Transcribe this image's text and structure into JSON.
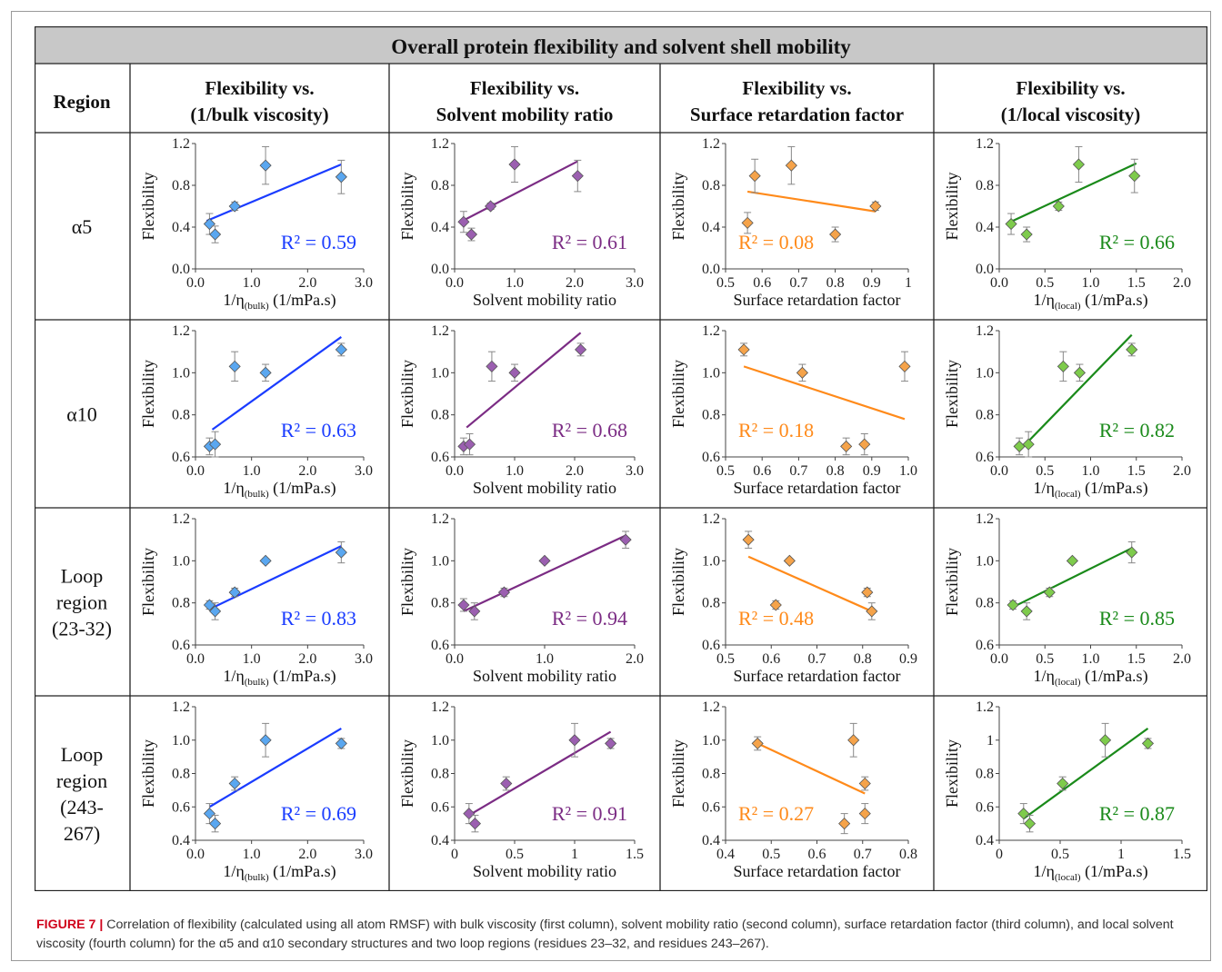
{
  "table": {
    "title": "Overall protein flexibility and solvent shell mobility",
    "region_header": "Region",
    "columns": [
      [
        "Flexibility vs.",
        "(1/bulk viscosity)"
      ],
      [
        "Flexibility vs.",
        "Solvent mobility ratio"
      ],
      [
        "Flexibility vs.",
        "Surface retardation factor"
      ],
      [
        "Flexibility vs.",
        "(1/local viscosity)"
      ]
    ],
    "rows": [
      [
        "α5"
      ],
      [
        "α10"
      ],
      [
        "Loop",
        "region",
        "(23-32)"
      ],
      [
        "Loop",
        "region",
        "(243-",
        "267)"
      ]
    ]
  },
  "caption": {
    "label": "FIGURE 7 |",
    "text": " Correlation of flexibility (calculated using all atom RMSF) with bulk viscosity (first column), solvent mobility ratio (second column), surface retardation factor (third column), and local solvent viscosity (fourth column) for the α5 and α10 secondary structures and two loop regions (residues 23–32, and residues 243–267)."
  },
  "chart_data": [
    {
      "type": "scatter",
      "row": 0,
      "col": 0,
      "color": "#1a3cff",
      "marker_fill": "#5aa7f0",
      "ylabel": "Flexibility",
      "xlabel": {
        "pre": "1/η",
        "sub": "(bulk)",
        "post": " (1/mPa.s)"
      },
      "xlim": [
        0,
        3
      ],
      "ylim": [
        0,
        1.2
      ],
      "xticks": [
        "0.0",
        "1.0",
        "2.0",
        "3.0"
      ],
      "xtick_vals": [
        0,
        1,
        2,
        3
      ],
      "yticks": [
        "0.0",
        "0.4",
        "0.8",
        "1.2"
      ],
      "ytick_vals": [
        0,
        0.4,
        0.8,
        1.2
      ],
      "r2": "R² = 0.59",
      "x": [
        0.25,
        0.35,
        0.7,
        1.25,
        2.6
      ],
      "y": [
        0.43,
        0.33,
        0.6,
        0.99,
        0.88
      ],
      "err": [
        0.1,
        0.08,
        0.04,
        0.18,
        0.16
      ],
      "fit": [
        [
          0.2,
          0.46
        ],
        [
          2.6,
          1.0
        ]
      ]
    },
    {
      "type": "scatter",
      "row": 0,
      "col": 1,
      "color": "#7b2c84",
      "marker_fill": "#9b5fb0",
      "ylabel": "Flexibility",
      "xlabel": {
        "pre": "Solvent mobility ratio"
      },
      "xlim": [
        0,
        3
      ],
      "ylim": [
        0,
        1.2
      ],
      "xticks": [
        "0.0",
        "1.0",
        "2.0",
        "3.0"
      ],
      "xtick_vals": [
        0,
        1,
        2,
        3
      ],
      "yticks": [
        "0.0",
        "0.4",
        "0.8",
        "1.2"
      ],
      "ytick_vals": [
        0,
        0.4,
        0.8,
        1.2
      ],
      "r2": "R² = 0.61",
      "x": [
        0.15,
        0.28,
        0.6,
        1.0,
        2.05
      ],
      "y": [
        0.45,
        0.33,
        0.6,
        1.0,
        0.89
      ],
      "err": [
        0.1,
        0.06,
        0.03,
        0.17,
        0.15
      ],
      "fit": [
        [
          0.1,
          0.45
        ],
        [
          2.05,
          1.03
        ]
      ]
    },
    {
      "type": "scatter",
      "row": 0,
      "col": 2,
      "color": "#ff8a1a",
      "marker_fill": "#f5a34a",
      "ylabel": "Flexibility",
      "xlabel": {
        "pre": "Surface retardation factor"
      },
      "xlim": [
        0.5,
        1.0
      ],
      "ylim": [
        0,
        1.2
      ],
      "xticks": [
        "0.5",
        "0.6",
        "0.7",
        "0.8",
        "0.9",
        "1"
      ],
      "xtick_vals": [
        0.5,
        0.6,
        0.7,
        0.8,
        0.9,
        1.0
      ],
      "yticks": [
        "0.0",
        "0.4",
        "0.8",
        "1.2"
      ],
      "ytick_vals": [
        0,
        0.4,
        0.8,
        1.2
      ],
      "r2": "R² = 0.08",
      "x": [
        0.56,
        0.58,
        0.68,
        0.8,
        0.91
      ],
      "y": [
        0.44,
        0.89,
        0.99,
        0.33,
        0.6
      ],
      "err": [
        0.1,
        0.16,
        0.18,
        0.07,
        0.04
      ],
      "fit": [
        [
          0.56,
          0.74
        ],
        [
          0.91,
          0.55
        ]
      ]
    },
    {
      "type": "scatter",
      "row": 0,
      "col": 3,
      "color": "#1a8a1a",
      "marker_fill": "#7ecb4c",
      "ylabel": "Flexibility",
      "xlabel": {
        "pre": "1/η",
        "sub": "(local)",
        "post": " (1/mPa.s)"
      },
      "xlim": [
        0,
        2
      ],
      "ylim": [
        0,
        1.2
      ],
      "xticks": [
        "0.0",
        "0.5",
        "1.0",
        "1.5",
        "2.0"
      ],
      "xtick_vals": [
        0,
        0.5,
        1,
        1.5,
        2
      ],
      "yticks": [
        "0.0",
        "0.4",
        "0.8",
        "1.2"
      ],
      "ytick_vals": [
        0,
        0.4,
        0.8,
        1.2
      ],
      "r2": "R² = 0.66",
      "x": [
        0.13,
        0.3,
        0.65,
        0.87,
        1.48
      ],
      "y": [
        0.43,
        0.33,
        0.6,
        1.0,
        0.89
      ],
      "err": [
        0.1,
        0.07,
        0.04,
        0.17,
        0.16
      ],
      "fit": [
        [
          0.1,
          0.44
        ],
        [
          1.5,
          1.01
        ]
      ]
    },
    {
      "type": "scatter",
      "row": 1,
      "col": 0,
      "color": "#1a3cff",
      "marker_fill": "#5aa7f0",
      "ylabel": "Flexibility",
      "xlabel": {
        "pre": "1/η",
        "sub": "(bulk)",
        "post": " (1/mPa.s)"
      },
      "xlim": [
        0,
        3
      ],
      "ylim": [
        0.6,
        1.2
      ],
      "xticks": [
        "0.0",
        "1.0",
        "2.0",
        "3.0"
      ],
      "xtick_vals": [
        0,
        1,
        2,
        3
      ],
      "yticks": [
        "0.6",
        "0.8",
        "1.0",
        "1.2"
      ],
      "ytick_vals": [
        0.6,
        0.8,
        1.0,
        1.2
      ],
      "r2": "R² = 0.63",
      "x": [
        0.25,
        0.35,
        0.7,
        1.25,
        2.6
      ],
      "y": [
        0.65,
        0.66,
        1.03,
        1.0,
        1.11
      ],
      "err": [
        0.04,
        0.06,
        0.07,
        0.04,
        0.03
      ],
      "fit": [
        [
          0.3,
          0.73
        ],
        [
          2.6,
          1.17
        ]
      ]
    },
    {
      "type": "scatter",
      "row": 1,
      "col": 1,
      "color": "#7b2c84",
      "marker_fill": "#9b5fb0",
      "ylabel": "Flexibility",
      "xlabel": {
        "pre": "Solvent mobility ratio"
      },
      "xlim": [
        0,
        3
      ],
      "ylim": [
        0.6,
        1.2
      ],
      "xticks": [
        "0.0",
        "1.0",
        "2.0",
        "3.0"
      ],
      "xtick_vals": [
        0,
        1,
        2,
        3
      ],
      "yticks": [
        "0.6",
        "0.8",
        "1.0",
        "1.2"
      ],
      "ytick_vals": [
        0.6,
        0.8,
        1.0,
        1.2
      ],
      "r2": "R² = 0.68",
      "x": [
        0.15,
        0.25,
        0.62,
        1.0,
        2.1
      ],
      "y": [
        0.65,
        0.66,
        1.03,
        1.0,
        1.11
      ],
      "err": [
        0.04,
        0.05,
        0.07,
        0.04,
        0.03
      ],
      "fit": [
        [
          0.2,
          0.74
        ],
        [
          2.1,
          1.19
        ]
      ]
    },
    {
      "type": "scatter",
      "row": 1,
      "col": 2,
      "color": "#ff8a1a",
      "marker_fill": "#f5a34a",
      "ylabel": "Flexibility",
      "xlabel": {
        "pre": "Surface retardation factor"
      },
      "xlim": [
        0.5,
        1.0
      ],
      "ylim": [
        0.6,
        1.2
      ],
      "xticks": [
        "0.5",
        "0.6",
        "0.7",
        "0.8",
        "0.9",
        "1.0"
      ],
      "xtick_vals": [
        0.5,
        0.6,
        0.7,
        0.8,
        0.9,
        1.0
      ],
      "yticks": [
        "0.6",
        "0.8",
        "1.0",
        "1.2"
      ],
      "ytick_vals": [
        0.6,
        0.8,
        1.0,
        1.2
      ],
      "r2": "R² = 0.18",
      "x": [
        0.55,
        0.71,
        0.83,
        0.88,
        0.99
      ],
      "y": [
        1.11,
        1.0,
        0.65,
        0.66,
        1.03
      ],
      "err": [
        0.03,
        0.04,
        0.04,
        0.05,
        0.07
      ],
      "fit": [
        [
          0.55,
          1.03
        ],
        [
          0.99,
          0.78
        ]
      ]
    },
    {
      "type": "scatter",
      "row": 1,
      "col": 3,
      "color": "#1a8a1a",
      "marker_fill": "#7ecb4c",
      "ylabel": "Flexibility",
      "xlabel": {
        "pre": "1/η",
        "sub": "(local)",
        "post": " (1/mPa.s)"
      },
      "xlim": [
        0,
        2
      ],
      "ylim": [
        0.6,
        1.2
      ],
      "xticks": [
        "0.0",
        "0.5",
        "1.0",
        "1.5",
        "2.0"
      ],
      "xtick_vals": [
        0,
        0.5,
        1,
        1.5,
        2
      ],
      "yticks": [
        "0.6",
        "0.8",
        "1.0",
        "1.2"
      ],
      "ytick_vals": [
        0.6,
        0.8,
        1.0,
        1.2
      ],
      "r2": "R² = 0.82",
      "x": [
        0.22,
        0.32,
        0.7,
        0.88,
        1.45
      ],
      "y": [
        0.65,
        0.66,
        1.03,
        1.0,
        1.11
      ],
      "err": [
        0.04,
        0.06,
        0.07,
        0.04,
        0.03
      ],
      "fit": [
        [
          0.22,
          0.63
        ],
        [
          1.45,
          1.18
        ]
      ]
    },
    {
      "type": "scatter",
      "row": 2,
      "col": 0,
      "color": "#1a3cff",
      "marker_fill": "#5aa7f0",
      "ylabel": "Flexibility",
      "xlabel": {
        "pre": "1/η",
        "sub": "(bulk)",
        "post": " (1/mPa.s)"
      },
      "xlim": [
        0,
        3
      ],
      "ylim": [
        0.6,
        1.2
      ],
      "xticks": [
        "0.0",
        "1.0",
        "2.0",
        "3.0"
      ],
      "xtick_vals": [
        0,
        1,
        2,
        3
      ],
      "yticks": [
        "0.6",
        "0.8",
        "1.0",
        "1.2"
      ],
      "ytick_vals": [
        0.6,
        0.8,
        1.0,
        1.2
      ],
      "r2": "R² = 0.83",
      "x": [
        0.25,
        0.35,
        0.7,
        1.25,
        2.6
      ],
      "y": [
        0.79,
        0.76,
        0.85,
        1.0,
        1.04
      ],
      "err": [
        0.02,
        0.04,
        0.02,
        0.01,
        0.05
      ],
      "fit": [
        [
          0.25,
          0.77
        ],
        [
          2.6,
          1.07
        ]
      ]
    },
    {
      "type": "scatter",
      "row": 2,
      "col": 1,
      "color": "#7b2c84",
      "marker_fill": "#9b5fb0",
      "ylabel": "Flexibility",
      "xlabel": {
        "pre": "Solvent mobility ratio"
      },
      "xlim": [
        0,
        2
      ],
      "ylim": [
        0.6,
        1.2
      ],
      "xticks": [
        "0.0",
        "1.0",
        "2.0"
      ],
      "xtick_vals": [
        0,
        1,
        2
      ],
      "yticks": [
        "0.6",
        "0.8",
        "1.0",
        "1.2"
      ],
      "ytick_vals": [
        0.6,
        0.8,
        1.0,
        1.2
      ],
      "r2": "R² = 0.94",
      "x": [
        0.1,
        0.22,
        0.55,
        1.0,
        1.9
      ],
      "y": [
        0.79,
        0.76,
        0.85,
        1.0,
        1.1
      ],
      "err": [
        0.03,
        0.04,
        0.02,
        0.01,
        0.04
      ],
      "fit": [
        [
          0.1,
          0.76
        ],
        [
          1.9,
          1.12
        ]
      ]
    },
    {
      "type": "scatter",
      "row": 2,
      "col": 2,
      "color": "#ff8a1a",
      "marker_fill": "#f5a34a",
      "ylabel": "Flexibility",
      "xlabel": {
        "pre": "Surface retardation factor"
      },
      "xlim": [
        0.5,
        0.9
      ],
      "ylim": [
        0.6,
        1.2
      ],
      "xticks": [
        "0.5",
        "0.6",
        "0.7",
        "0.8",
        "0.9"
      ],
      "xtick_vals": [
        0.5,
        0.6,
        0.7,
        0.8,
        0.9
      ],
      "yticks": [
        "0.6",
        "0.8",
        "1.0",
        "1.2"
      ],
      "ytick_vals": [
        0.6,
        0.8,
        1.0,
        1.2
      ],
      "r2": "R² = 0.48",
      "x": [
        0.55,
        0.61,
        0.64,
        0.81,
        0.82
      ],
      "y": [
        1.1,
        0.79,
        1.0,
        0.85,
        0.76
      ],
      "err": [
        0.04,
        0.02,
        0.01,
        0.02,
        0.04
      ],
      "fit": [
        [
          0.55,
          1.02
        ],
        [
          0.82,
          0.76
        ]
      ]
    },
    {
      "type": "scatter",
      "row": 2,
      "col": 3,
      "color": "#1a8a1a",
      "marker_fill": "#7ecb4c",
      "ylabel": "Flexibility",
      "xlabel": {
        "pre": "1/η",
        "sub": "(local)",
        "post": " (1/mPa.s)"
      },
      "xlim": [
        0,
        2
      ],
      "ylim": [
        0.6,
        1.2
      ],
      "xticks": [
        "0.0",
        "0.5",
        "1.0",
        "1.5",
        "2.0"
      ],
      "xtick_vals": [
        0,
        0.5,
        1,
        1.5,
        2
      ],
      "yticks": [
        "0.6",
        "0.8",
        "1.0",
        "1.2"
      ],
      "ytick_vals": [
        0.6,
        0.8,
        1.0,
        1.2
      ],
      "r2": "R² = 0.85",
      "x": [
        0.15,
        0.3,
        0.55,
        0.8,
        1.45
      ],
      "y": [
        0.79,
        0.76,
        0.85,
        1.0,
        1.04
      ],
      "err": [
        0.02,
        0.04,
        0.02,
        0.01,
        0.05
      ],
      "fit": [
        [
          0.15,
          0.78
        ],
        [
          1.45,
          1.06
        ]
      ]
    },
    {
      "type": "scatter",
      "row": 3,
      "col": 0,
      "color": "#1a3cff",
      "marker_fill": "#5aa7f0",
      "ylabel": "Flexibility",
      "xlabel": {
        "pre": "1/η",
        "sub": "(bulk)",
        "post": " (1/mPa.s)"
      },
      "xlim": [
        0,
        3
      ],
      "ylim": [
        0.4,
        1.2
      ],
      "xticks": [
        "0.0",
        "1.0",
        "2.0",
        "3.0"
      ],
      "xtick_vals": [
        0,
        1,
        2,
        3
      ],
      "yticks": [
        "0.4",
        "0.6",
        "0.8",
        "1.0",
        "1.2"
      ],
      "ytick_vals": [
        0.4,
        0.6,
        0.8,
        1.0,
        1.2
      ],
      "r2": "R² = 0.69",
      "x": [
        0.25,
        0.35,
        0.7,
        1.25,
        2.6
      ],
      "y": [
        0.56,
        0.5,
        0.74,
        1.0,
        0.98
      ],
      "err": [
        0.06,
        0.05,
        0.04,
        0.1,
        0.03
      ],
      "fit": [
        [
          0.25,
          0.6
        ],
        [
          2.6,
          1.07
        ]
      ]
    },
    {
      "type": "scatter",
      "row": 3,
      "col": 1,
      "color": "#7b2c84",
      "marker_fill": "#9b5fb0",
      "ylabel": "Flexibility",
      "xlabel": {
        "pre": "Solvent mobility ratio"
      },
      "xlim": [
        0,
        1.5
      ],
      "ylim": [
        0.4,
        1.2
      ],
      "xticks": [
        "0",
        "0.5",
        "1",
        "1.5"
      ],
      "xtick_vals": [
        0,
        0.5,
        1,
        1.5
      ],
      "yticks": [
        "0.4",
        "0.6",
        "0.8",
        "1.0",
        "1.2"
      ],
      "ytick_vals": [
        0.4,
        0.6,
        0.8,
        1.0,
        1.2
      ],
      "r2": "R² = 0.91",
      "x": [
        0.12,
        0.17,
        0.43,
        1.0,
        1.3
      ],
      "y": [
        0.56,
        0.5,
        0.74,
        1.0,
        0.98
      ],
      "err": [
        0.06,
        0.05,
        0.04,
        0.1,
        0.03
      ],
      "fit": [
        [
          0.12,
          0.55
        ],
        [
          1.3,
          1.05
        ]
      ]
    },
    {
      "type": "scatter",
      "row": 3,
      "col": 2,
      "color": "#ff8a1a",
      "marker_fill": "#f5a34a",
      "ylabel": "Flexibility",
      "xlabel": {
        "pre": "Surface retardation factor"
      },
      "xlim": [
        0.4,
        0.8
      ],
      "ylim": [
        0.4,
        1.2
      ],
      "xticks": [
        "0.4",
        "0.5",
        "0.6",
        "0.7",
        "0.8"
      ],
      "xtick_vals": [
        0.4,
        0.5,
        0.6,
        0.7,
        0.8
      ],
      "yticks": [
        "0.4",
        "0.6",
        "0.8",
        "1.0",
        "1.2"
      ],
      "ytick_vals": [
        0.4,
        0.6,
        0.8,
        1.0,
        1.2
      ],
      "r2": "R² = 0.27",
      "x": [
        0.47,
        0.66,
        0.68,
        0.705,
        0.705
      ],
      "y": [
        0.98,
        0.5,
        1.0,
        0.74,
        0.56
      ],
      "err": [
        0.04,
        0.06,
        0.1,
        0.04,
        0.06
      ],
      "fit": [
        [
          0.47,
          0.98
        ],
        [
          0.705,
          0.68
        ]
      ]
    },
    {
      "type": "scatter",
      "row": 3,
      "col": 3,
      "color": "#1a8a1a",
      "marker_fill": "#7ecb4c",
      "ylabel": "Flexibility",
      "xlabel": {
        "pre": "1/η",
        "sub": "(local)",
        "post": " (1/mPa.s)"
      },
      "xlim": [
        0,
        1.5
      ],
      "ylim": [
        0.4,
        1.2
      ],
      "xticks": [
        "0",
        "0.5",
        "1",
        "1.5"
      ],
      "xtick_vals": [
        0,
        0.5,
        1,
        1.5
      ],
      "yticks": [
        "0.4",
        "0.6",
        "0.8",
        "1",
        "1.2"
      ],
      "ytick_vals": [
        0.4,
        0.6,
        0.8,
        1.0,
        1.2
      ],
      "r2": "R² = 0.87",
      "x": [
        0.2,
        0.25,
        0.52,
        0.87,
        1.22
      ],
      "y": [
        0.56,
        0.5,
        0.74,
        1.0,
        0.98
      ],
      "err": [
        0.06,
        0.05,
        0.04,
        0.1,
        0.03
      ],
      "fit": [
        [
          0.2,
          0.53
        ],
        [
          1.22,
          1.07
        ]
      ]
    }
  ]
}
